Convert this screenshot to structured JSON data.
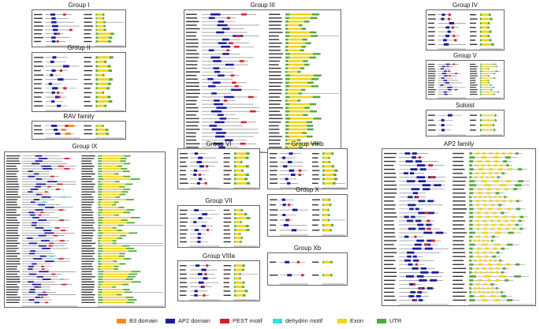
{
  "colors": {
    "b3": "#f28c1e",
    "ap2": "#1a1a9e",
    "pest": "#d71f2a",
    "dehydrin": "#33e0e0",
    "exon": "#f2d41a",
    "utr": "#55aa3a",
    "line": "#777777"
  },
  "groups": [
    {
      "title": "Group I",
      "rows": 8
    },
    {
      "title": "Group II",
      "rows": 12
    },
    {
      "title": "RAV family",
      "rows": 3
    },
    {
      "title": "Group IX",
      "rows": 58
    },
    {
      "title": "Group III",
      "rows": 38
    },
    {
      "title": "Group VI",
      "rows": 8
    },
    {
      "title": "Group VIIIb",
      "rows": 8
    },
    {
      "title": "Group VII",
      "rows": 9
    },
    {
      "title": "Group X",
      "rows": 7
    },
    {
      "title": "Group VIIIa",
      "rows": 8
    },
    {
      "title": "Group Xb",
      "rows": 2
    },
    {
      "title": "Group IV",
      "rows": 8
    },
    {
      "title": "Group V",
      "rows": 14
    },
    {
      "title": "Soloist",
      "rows": 4
    },
    {
      "title": "AP2 family",
      "rows": 38
    }
  ],
  "legend": [
    {
      "label": "B3 domain",
      "color": "#f28c1e"
    },
    {
      "label": "AP2 domain",
      "color": "#1a1a9e"
    },
    {
      "label": "PEST motif",
      "color": "#d71f2a"
    },
    {
      "label": "dehydrin motif",
      "color": "#33e0e0"
    },
    {
      "label": "Exon",
      "color": "#f2d41a"
    },
    {
      "label": "UTR",
      "color": "#55aa3a"
    }
  ]
}
